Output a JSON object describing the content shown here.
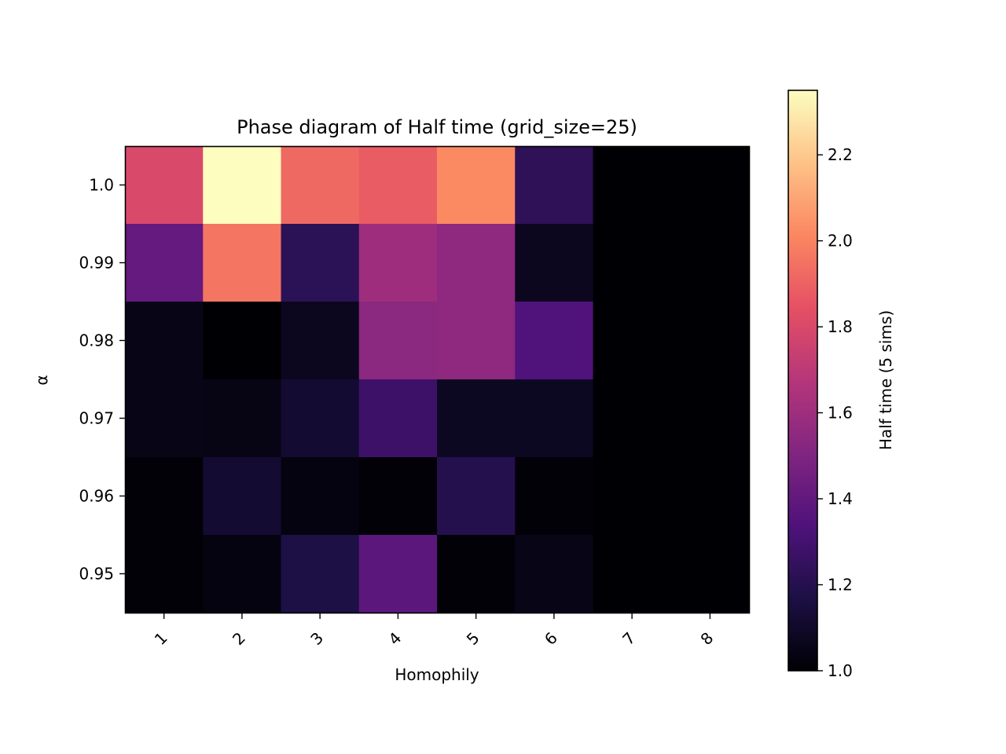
{
  "chart_data": {
    "type": "heatmap",
    "title": "Phase diagram of Half time (grid_size=25)",
    "xlabel": "Homophily",
    "ylabel": "α",
    "x_categories": [
      "1",
      "2",
      "3",
      "4",
      "5",
      "6",
      "7",
      "8"
    ],
    "y_categories": [
      "1.0",
      "0.99",
      "0.98",
      "0.97",
      "0.96",
      "0.95"
    ],
    "values": [
      [
        1.8,
        2.35,
        1.92,
        1.88,
        2.02,
        1.23,
        1.0,
        1.0
      ],
      [
        1.41,
        1.96,
        1.22,
        1.6,
        1.55,
        1.07,
        1.0,
        1.0
      ],
      [
        1.05,
        1.0,
        1.07,
        1.54,
        1.55,
        1.34,
        1.0,
        1.0
      ],
      [
        1.05,
        1.04,
        1.12,
        1.28,
        1.08,
        1.08,
        1.0,
        1.0
      ],
      [
        1.01,
        1.12,
        1.03,
        1.01,
        1.2,
        1.01,
        1.0,
        1.0
      ],
      [
        1.01,
        1.03,
        1.17,
        1.38,
        1.01,
        1.05,
        1.0,
        1.0
      ]
    ],
    "colormap": "magma",
    "colorbar": {
      "label": "Half time (5 sims)",
      "range": [
        1.0,
        2.35
      ],
      "ticks": [
        {
          "value": 1.0,
          "label": "1.0"
        },
        {
          "value": 1.2,
          "label": "1.2"
        },
        {
          "value": 1.4,
          "label": "1.4"
        },
        {
          "value": 1.6,
          "label": "1.6"
        },
        {
          "value": 1.8,
          "label": "1.8"
        },
        {
          "value": 2.0,
          "label": "2.0"
        },
        {
          "value": 2.2,
          "label": "2.2"
        }
      ]
    },
    "x_tick_rotation_deg": 45,
    "grid": false
  }
}
